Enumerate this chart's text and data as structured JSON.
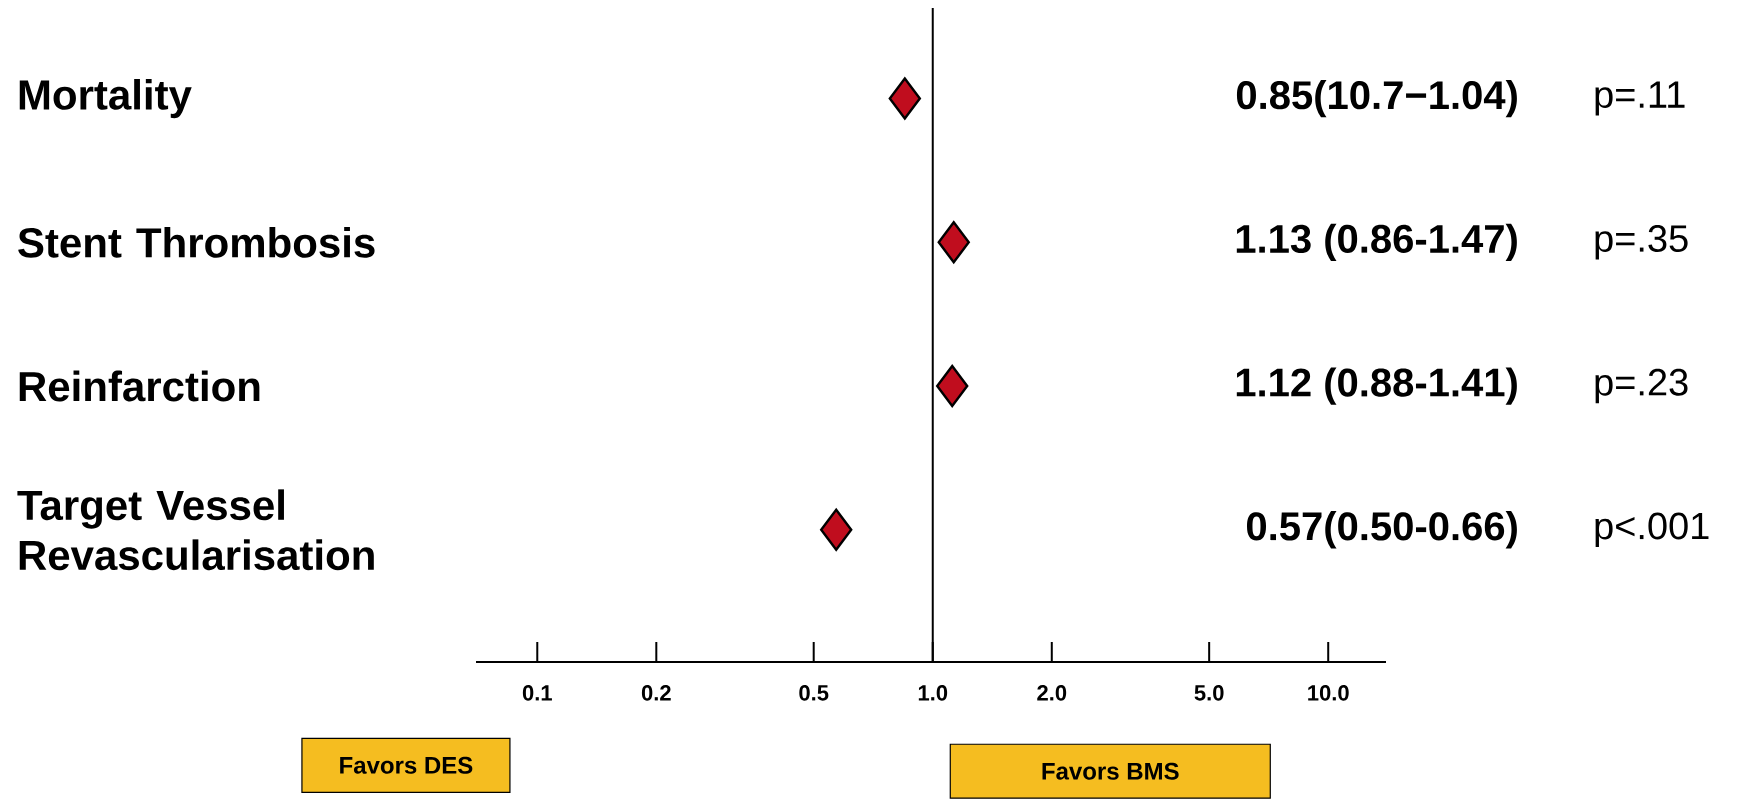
{
  "chart_data": {
    "type": "scatter",
    "orientation": "horizontal",
    "categories": [
      "Mortality",
      "Stent Thrombosis",
      "Reinfarction",
      "Target Vessel Revascularisation"
    ],
    "values": [
      0.85,
      1.13,
      1.12,
      0.57
    ],
    "color": "#c00d1e",
    "marker": "diamond",
    "log": "x",
    "grid": false,
    "xlim": [
      0.07,
      14
    ],
    "xticks": [
      0.1,
      0.2,
      0.5,
      {
        "value": 1,
        "label": "1.0"
      },
      {
        "value": 2,
        "label": "2.0"
      },
      {
        "value": 5,
        "label": "5.0"
      },
      {
        "value": 10,
        "label": "10.0"
      }
    ],
    "ref_lines": [
      {
        "axis": "x",
        "value": 1
      }
    ],
    "annotations": [
      "0.85(10.7−1.04)",
      "p=.11",
      "1.13 (0.86-1.47)",
      "p=.35",
      "1.12 (0.88-1.41)",
      "p=.23",
      "0.57(0.50-0.66)",
      "p<.001",
      "Favors DES",
      "Favors BMS"
    ]
  }
}
